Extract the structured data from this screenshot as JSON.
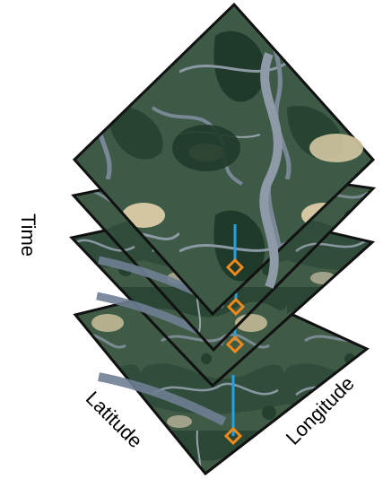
{
  "diagram": {
    "labels": {
      "time": "Time",
      "latitude": "Latitude",
      "longitude": "Longitude"
    },
    "colors": {
      "background": "#ffffff",
      "tile_border": "#111111",
      "vegetation_dark": "#24402f",
      "vegetation_mid": "#3f5b45",
      "sand": "#cdbf9c",
      "river": "#6f7f93",
      "river_light": "#a7b1bd",
      "marker_line": "#1fa3e6",
      "marker_diamond": "#f08a1c"
    },
    "layers": [
      {
        "name": "layer-1"
      },
      {
        "name": "layer-2"
      },
      {
        "name": "layer-3"
      },
      {
        "name": "layer-4"
      }
    ]
  }
}
